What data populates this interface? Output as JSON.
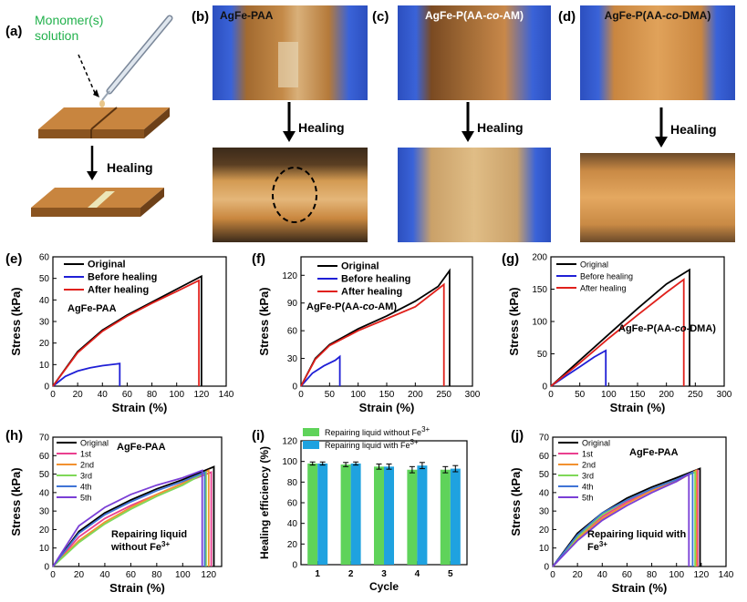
{
  "panel_labels": [
    "(a)",
    "(b)",
    "(c)",
    "(d)",
    "(e)",
    "(f)",
    "(g)",
    "(h)",
    "(i)",
    "(j)"
  ],
  "schematic": {
    "monomer_label": "Monomer(s)\nsolution",
    "monomer_line1": "Monomer(s)",
    "monomer_line2": "solution",
    "healing": "Healing",
    "label_color": "#22b14c"
  },
  "photos": {
    "b": {
      "title": "AgFe-PAA",
      "healing": "Healing"
    },
    "c": {
      "title_prefix": "AgFe-P(AA-",
      "title_italic": "co",
      "title_suffix": "-AM)",
      "healing": "Healing"
    },
    "d": {
      "title_prefix": "AgFe-P(AA-",
      "title_italic": "co",
      "title_suffix": "-DMA)",
      "healing": "Healing"
    }
  },
  "colors": {
    "black": "#000000",
    "blue": "#1f1fd6",
    "red": "#e0201b",
    "pink": "#ea3f8f",
    "orange": "#f29130",
    "green": "#7fd858",
    "blue2": "#3f74d6",
    "purple": "#7a3fd6",
    "bar_green": "#5fd35a",
    "bar_blue": "#1fa2e0"
  },
  "chart_data": [
    {
      "id": "e",
      "type": "line",
      "xlabel": "Strain (%)",
      "ylabel": "Stress (kPa)",
      "xlim": [
        0,
        140
      ],
      "ylim": [
        0,
        60
      ],
      "xticks": [
        0,
        20,
        40,
        60,
        80,
        100,
        120,
        140
      ],
      "yticks": [
        0,
        10,
        20,
        30,
        40,
        50,
        60
      ],
      "annotation": "AgFe-PAA",
      "legend": [
        "Original",
        "Before healing",
        "After healing"
      ],
      "series": [
        {
          "name": "Original",
          "color": "black",
          "x": [
            0,
            20,
            40,
            60,
            80,
            100,
            120,
            120
          ],
          "y": [
            0,
            16,
            26,
            33,
            39,
            45,
            51,
            0
          ]
        },
        {
          "name": "Before healing",
          "color": "blue",
          "x": [
            0,
            10,
            20,
            30,
            40,
            54,
            54
          ],
          "y": [
            0,
            4.5,
            7,
            8.5,
            9.5,
            10.5,
            0
          ]
        },
        {
          "name": "After healing",
          "color": "red",
          "x": [
            0,
            20,
            40,
            60,
            80,
            100,
            118,
            118
          ],
          "y": [
            0,
            15.5,
            25.5,
            32.5,
            38.5,
            44,
            49,
            0
          ]
        }
      ]
    },
    {
      "id": "f",
      "type": "line",
      "xlabel": "Strain (%)",
      "ylabel": "Stress (kPa)",
      "xlim": [
        0,
        300
      ],
      "ylim": [
        0,
        140
      ],
      "xticks": [
        0,
        50,
        100,
        150,
        200,
        250,
        300
      ],
      "yticks": [
        0,
        30,
        60,
        90,
        120
      ],
      "annotation_prefix": "AgFe-P(AA-",
      "annotation_italic": "co",
      "annotation_suffix": "-AM)",
      "legend": [
        "Original",
        "Before healing",
        "After healing"
      ],
      "series": [
        {
          "name": "Original",
          "color": "black",
          "x": [
            0,
            25,
            50,
            100,
            150,
            200,
            240,
            260,
            260
          ],
          "y": [
            0,
            30,
            45,
            62,
            76,
            92,
            108,
            125,
            0
          ]
        },
        {
          "name": "Before healing",
          "color": "blue",
          "x": [
            0,
            20,
            40,
            60,
            68,
            68
          ],
          "y": [
            0,
            14,
            22,
            28,
            32,
            0
          ]
        },
        {
          "name": "After healing",
          "color": "red",
          "x": [
            0,
            25,
            50,
            100,
            150,
            200,
            250,
            250
          ],
          "y": [
            0,
            29,
            44,
            60,
            73,
            86,
            110,
            0
          ]
        }
      ]
    },
    {
      "id": "g",
      "type": "line",
      "xlabel": "Strain (%)",
      "ylabel": "Stress (kPa)",
      "xlim": [
        0,
        300
      ],
      "ylim": [
        0,
        200
      ],
      "xticks": [
        0,
        50,
        100,
        150,
        200,
        250,
        300
      ],
      "yticks": [
        0,
        50,
        100,
        150,
        200
      ],
      "annotation_prefix": "AgFe-P(AA-",
      "annotation_italic": "co",
      "annotation_suffix": "-DMA)",
      "legend": [
        "Original",
        "Before healing",
        "After healing"
      ],
      "series": [
        {
          "name": "Original",
          "color": "black",
          "x": [
            0,
            50,
            100,
            150,
            200,
            240,
            240
          ],
          "y": [
            0,
            40,
            80,
            120,
            158,
            180,
            0
          ]
        },
        {
          "name": "Before healing",
          "color": "blue",
          "x": [
            0,
            25,
            50,
            75,
            95,
            95
          ],
          "y": [
            0,
            15,
            30,
            45,
            55,
            0
          ]
        },
        {
          "name": "After healing",
          "color": "red",
          "x": [
            0,
            50,
            100,
            150,
            200,
            230,
            230
          ],
          "y": [
            0,
            36,
            74,
            110,
            145,
            165,
            0
          ]
        }
      ]
    },
    {
      "id": "h",
      "type": "line",
      "xlabel": "Strain (%)",
      "ylabel": "Stress (kPa)",
      "xlim": [
        0,
        130
      ],
      "ylim": [
        0,
        70
      ],
      "xticks": [
        0,
        20,
        40,
        60,
        80,
        100,
        120
      ],
      "yticks": [
        0,
        10,
        20,
        30,
        40,
        50,
        60,
        70
      ],
      "annotation": "AgFe-PAA",
      "note_line1": "Repairing liquid",
      "note_line2_prefix": "without Fe",
      "note_line2_sup": "3+",
      "legend": [
        "Original",
        "1st",
        "2nd",
        "3rd",
        "4th",
        "5th"
      ],
      "series": [
        {
          "name": "Original",
          "color": "black",
          "x": [
            0,
            20,
            40,
            60,
            80,
            100,
            124,
            124
          ],
          "y": [
            0,
            19,
            29,
            36,
            42,
            47,
            54,
            0
          ]
        },
        {
          "name": "1st",
          "color": "pink",
          "x": [
            0,
            20,
            40,
            60,
            80,
            100,
            122,
            122
          ],
          "y": [
            0,
            16,
            26,
            33,
            39,
            45,
            51,
            0
          ]
        },
        {
          "name": "2nd",
          "color": "orange",
          "x": [
            0,
            20,
            40,
            60,
            80,
            100,
            120,
            120
          ],
          "y": [
            0,
            14,
            24,
            32,
            39,
            45,
            52,
            0
          ]
        },
        {
          "name": "3rd",
          "color": "green",
          "x": [
            0,
            20,
            40,
            60,
            80,
            100,
            118,
            118
          ],
          "y": [
            0,
            13,
            23,
            31,
            38,
            44,
            51,
            0
          ]
        },
        {
          "name": "4th",
          "color": "blue2",
          "x": [
            0,
            20,
            40,
            60,
            80,
            100,
            117,
            117
          ],
          "y": [
            0,
            18,
            28,
            35,
            41,
            46,
            51,
            0
          ]
        },
        {
          "name": "5th",
          "color": "purple",
          "x": [
            0,
            20,
            40,
            60,
            80,
            100,
            115,
            115
          ],
          "y": [
            0,
            22,
            32,
            39,
            44,
            48,
            52,
            0
          ]
        }
      ]
    },
    {
      "id": "i",
      "type": "bar",
      "xlabel": "Cycle",
      "ylabel": "Healing efficiency (%)",
      "ylim": [
        0,
        120
      ],
      "yticks": [
        0,
        20,
        40,
        60,
        80,
        100,
        120
      ],
      "categories": [
        "1",
        "2",
        "3",
        "4",
        "5"
      ],
      "legend_prefix": [
        "Repairing liquid without Fe",
        "Repairing liquid with Fe"
      ],
      "legend_sup": "3+",
      "series": [
        {
          "name": "Repairing liquid without Fe3+",
          "color": "bar_green",
          "values": [
            98,
            97,
            95,
            92,
            92
          ],
          "err": [
            1.5,
            2,
            2.5,
            3,
            3
          ]
        },
        {
          "name": "Repairing liquid with Fe3+",
          "color": "bar_blue",
          "values": [
            98,
            98,
            95,
            96,
            93
          ],
          "err": [
            1.5,
            1.5,
            2.5,
            3,
            3
          ]
        }
      ]
    },
    {
      "id": "j",
      "type": "line",
      "xlabel": "Strain (%)",
      "ylabel": "Stress (kPa)",
      "xlim": [
        0,
        140
      ],
      "ylim": [
        0,
        70
      ],
      "xticks": [
        0,
        20,
        40,
        60,
        80,
        100,
        120,
        140
      ],
      "yticks": [
        0,
        10,
        20,
        30,
        40,
        50,
        60,
        70
      ],
      "annotation": "AgFe-PAA",
      "note_line1": "Repairing liquid with",
      "note_line2_prefix": "Fe",
      "note_line2_sup": "3+",
      "legend": [
        "Original",
        "1st",
        "2nd",
        "3rd",
        "4th",
        "5th"
      ],
      "series": [
        {
          "name": "Original",
          "color": "black",
          "x": [
            0,
            20,
            40,
            60,
            80,
            100,
            119,
            119
          ],
          "y": [
            0,
            18,
            29,
            37,
            43,
            48,
            53,
            0
          ]
        },
        {
          "name": "1st",
          "color": "pink",
          "x": [
            0,
            20,
            40,
            60,
            80,
            100,
            117,
            117
          ],
          "y": [
            0,
            16,
            27,
            35,
            41,
            47,
            52,
            0
          ]
        },
        {
          "name": "2nd",
          "color": "orange",
          "x": [
            0,
            20,
            40,
            60,
            80,
            100,
            116,
            116
          ],
          "y": [
            0,
            15,
            26,
            34,
            41,
            46,
            52,
            0
          ]
        },
        {
          "name": "3rd",
          "color": "green",
          "x": [
            0,
            20,
            40,
            60,
            80,
            100,
            115,
            115
          ],
          "y": [
            0,
            16,
            28,
            36,
            42,
            47,
            51,
            0
          ]
        },
        {
          "name": "4th",
          "color": "blue2",
          "x": [
            0,
            20,
            40,
            60,
            80,
            100,
            113,
            113
          ],
          "y": [
            0,
            17,
            29,
            36,
            42,
            47,
            51,
            0
          ]
        },
        {
          "name": "5th",
          "color": "purple",
          "x": [
            0,
            20,
            40,
            60,
            80,
            100,
            110,
            110
          ],
          "y": [
            0,
            14,
            25,
            33,
            40,
            46,
            50,
            0
          ]
        }
      ]
    }
  ]
}
